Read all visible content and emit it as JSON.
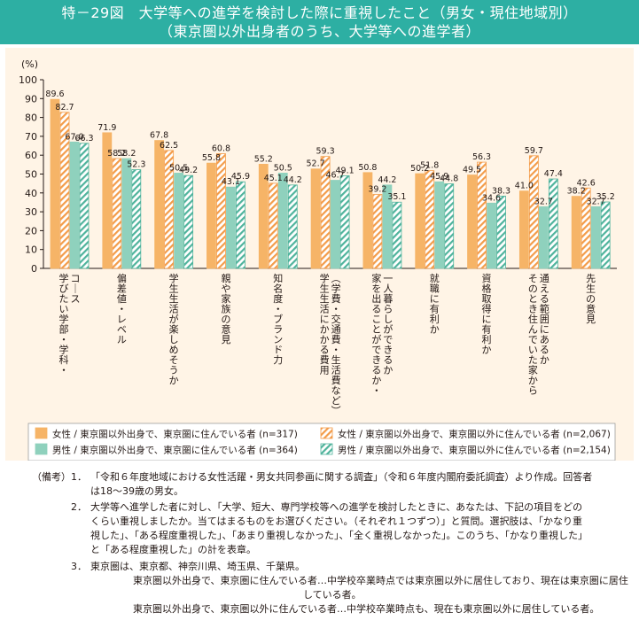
{
  "header": {
    "title_line1": "特－29図　大学等への進学を検討した際に重視したこと（男女・現住地域別）",
    "title_line2": "（東京圏以外出身者のうち、大学等への進学者）"
  },
  "chart_data": {
    "type": "bar",
    "ylabel": "(%)",
    "ylim": [
      0,
      100
    ],
    "yticks": [
      0,
      10,
      20,
      30,
      40,
      50,
      60,
      70,
      80,
      90,
      100
    ],
    "categories": [
      "コース\n学びたい学部・学科・",
      "偏差値・レベル",
      "学生生活が楽しめそうか",
      "親や家族の意見",
      "知名度・ブランド力",
      "（学費・交通費・生活費など）\n学生生活にかかる費用",
      "一人暮らしができるか\n家を出ることができるか・",
      "就職に有利か",
      "資格取得に有利か",
      "通える範囲にあるか\nそのとき住んでいた家から",
      "先生の意見"
    ],
    "series": [
      {
        "name": "女性 / 東京圏以外出身で、東京圏に住んでいる者 (n=317)",
        "values": [
          89.6,
          71.9,
          67.8,
          55.8,
          55.2,
          52.7,
          50.8,
          50.2,
          49.5,
          41.0,
          38.2
        ]
      },
      {
        "name": "女性 / 東京圏以外出身で、東京圏以外に住んでいる者 (n=2,067)",
        "values": [
          82.7,
          58.2,
          62.5,
          60.8,
          45.1,
          59.3,
          39.2,
          51.8,
          56.3,
          59.7,
          42.6
        ]
      },
      {
        "name": "男性 / 東京圏以外出身で、東京圏に住んでいる者 (n=364)",
        "values": [
          67.0,
          58.2,
          50.5,
          43.1,
          50.5,
          46.7,
          44.2,
          45.9,
          34.6,
          32.7,
          32.7
        ]
      },
      {
        "name": "男性 / 東京圏以外出身で、東京圏以外に住んでいる者 (n=2,154)",
        "values": [
          66.3,
          52.3,
          49.2,
          45.9,
          44.2,
          49.1,
          35.1,
          44.8,
          38.3,
          47.4,
          35.2
        ]
      }
    ],
    "legend_position": "bottom"
  },
  "colors": {
    "title_band": "#2dafa3",
    "panel_bg": "#fff4e6",
    "female_tokyo": "#f6b467",
    "female_other_stripe": "#f39c4a",
    "male_tokyo": "#8fd1bd",
    "male_other_stripe": "#4fb39c"
  },
  "notes": {
    "heading": "（備考）",
    "items": [
      {
        "num": "1．",
        "lines": [
          "「令和６年度地域における女性活躍・男女共同参画に関する調査」（令和６年度内閣府委託調査）より作成。回答者",
          "は18～39歳の男女。"
        ]
      },
      {
        "num": "2．",
        "lines": [
          "大学等へ進学した者に対し、「大学、短大、専門学校等への進学を検討したときに、あなたは、下記の項目をどの",
          "くらい重視しましたか。当てはまるものをお選びください。（それぞれ１つずつ）」と質問。選択肢は、「かなり重",
          "視した」、「ある程度重視した」、「あまり重視しなかった」、「全く重視しなかった」。このうち、「かなり重視した」",
          "と「ある程度重視した」の計を表章。"
        ]
      },
      {
        "num": "3．",
        "lines": [
          "東京圏は、東京都、神奈川県、埼玉県、千葉県。"
        ]
      }
    ],
    "def1_line1": "東京圏以外出身で、東京圏に住んでいる者…中学校卒業時点では東京圏以外に居住しており、現在は東京圏に居住",
    "def1_line2": "している者。",
    "def2": "東京圏以外出身で、東京圏以外に住んでいる者…中学校卒業時点も、現在も東京圏以外に居住している者。"
  }
}
